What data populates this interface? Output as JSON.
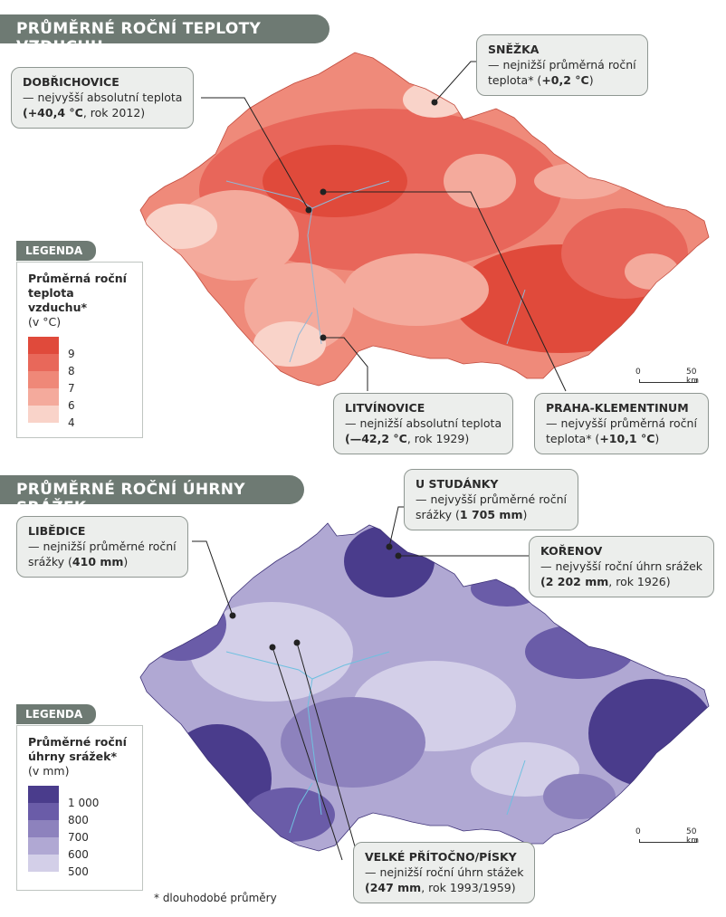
{
  "temperature": {
    "title": "PRŮMĚRNÉ ROČNÍ TEPLOTY VZDUCHU",
    "legend_tab": "LEGENDA",
    "legend_title_line1": "Průměrná roční",
    "legend_title_line2": "teplota vzduchu*",
    "legend_unit": "(v °C)",
    "legend": [
      {
        "label": "9",
        "color": "#e04a3b"
      },
      {
        "label": "8",
        "color": "#e8685a"
      },
      {
        "label": "7",
        "color": "#ef8878"
      },
      {
        "label": "6",
        "color": "#f4aa9c"
      },
      {
        "label": "4",
        "color": "#f9d3c9"
      }
    ],
    "callouts": {
      "dobrichovice": {
        "place": "DOBŘICHOVICE",
        "desc": "— nejvyšší absolutní teplota",
        "val_bold": "(+40,4 °C",
        "val_rest": ", rok 2012)"
      },
      "snezka": {
        "place": "SNĚŽKA",
        "desc": "— nejnižší průměrná roční",
        "val_pre": "teplota* (",
        "val_bold": "+0,2 °C",
        "val_post": ")"
      },
      "litvinovice": {
        "place": "LITVÍNOVICE",
        "desc": "— nejnižší absolutní teplota",
        "val_bold": "(—42,2 °C",
        "val_rest": ", rok 1929)"
      },
      "klementinum": {
        "place": "PRAHA-KLEMENTINUM",
        "desc": "— nejvyšší průměrná roční",
        "val_pre": "teplota* (",
        "val_bold": "+10,1 °C",
        "val_post": ")"
      }
    },
    "scale": {
      "start": "0",
      "end": "50 km"
    }
  },
  "precipitation": {
    "title": "PRŮMĚRNÉ ROČNÍ ÚHRNY SRÁŽEK",
    "legend_tab": "LEGENDA",
    "legend_title_line1": "Průměrné roční",
    "legend_title_line2": "úhrny srážek*",
    "legend_unit": "(v mm)",
    "legend": [
      {
        "label": "1 000",
        "color": "#4a3c8c"
      },
      {
        "label": "800",
        "color": "#6a5ca8"
      },
      {
        "label": "700",
        "color": "#8d82bd"
      },
      {
        "label": "600",
        "color": "#b0a8d3"
      },
      {
        "label": "500",
        "color": "#d3cfe8"
      }
    ],
    "callouts": {
      "u_studanky": {
        "place": "U STUDÁNKY",
        "desc": "— nejvyšší průměrné roční",
        "val_pre": "srážky (",
        "val_bold": "1 705 mm",
        "val_post": ")"
      },
      "libedice": {
        "place": "LIBĚDICE",
        "desc": "— nejnižší průměrné roční",
        "val_pre": "srážky (",
        "val_bold": "410 mm",
        "val_post": ")"
      },
      "korenov": {
        "place": "KOŘENOV",
        "desc": "— nejvyšší roční úhrn srážek",
        "val_bold": "(2 202 mm",
        "val_rest": ", rok 1926)"
      },
      "velke_pritocno": {
        "place": "VELKÉ PŘÍTOČNO/PÍSKY",
        "desc": "— nejnižší roční úhrn stážek",
        "val_bold": "(247 mm",
        "val_rest": ", rok 1993/1959)"
      }
    },
    "scale": {
      "start": "0",
      "end": "50 km"
    },
    "footnote": "* dlouhodobé průměry"
  }
}
